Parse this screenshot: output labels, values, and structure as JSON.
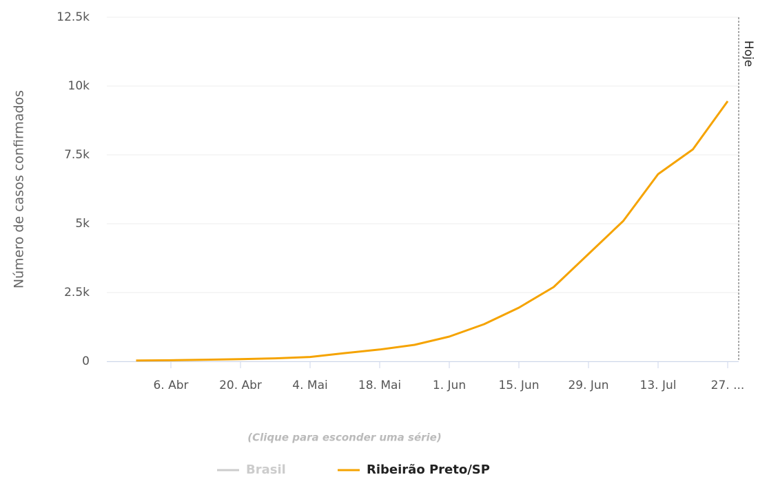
{
  "chart_data": {
    "type": "line",
    "y_axis_label": "Número de casos confirmados",
    "categories": [
      null,
      "6. Abr",
      null,
      "20. Abr",
      null,
      "4. Mai",
      null,
      "18. Mai",
      null,
      "1. Jun",
      null,
      "15. Jun",
      null,
      "29. Jun",
      null,
      "13. Jul",
      null,
      "27. ..."
    ],
    "series": [
      {
        "name": "Brasil",
        "color": "#cccccc",
        "visible": false,
        "values": [
          null,
          null,
          null,
          null,
          null,
          null,
          null,
          null,
          null,
          null,
          null,
          null,
          null,
          null,
          null,
          null,
          null,
          null
        ]
      },
      {
        "name": "Ribeirão Preto/SP",
        "color": "#f5a300",
        "visible": true,
        "values": [
          30,
          40,
          60,
          80,
          110,
          160,
          300,
          430,
          600,
          900,
          1350,
          1950,
          2700,
          3900,
          5100,
          6800,
          7700,
          9450
        ]
      }
    ],
    "ylim": [
      0,
      12500
    ],
    "yticks": [
      0,
      {
        "value": 2500,
        "label": "2.5k"
      },
      {
        "value": 5000,
        "label": "5k"
      },
      {
        "value": 7500,
        "label": "7.5k"
      },
      {
        "value": 10000,
        "label": "10k"
      },
      {
        "value": 12500,
        "label": "12.5k"
      }
    ],
    "grid": true,
    "annotations": [
      {
        "text": "Hoje"
      }
    ],
    "legend_hint": "(Clique para esconder uma série)",
    "legend": "bottom"
  }
}
